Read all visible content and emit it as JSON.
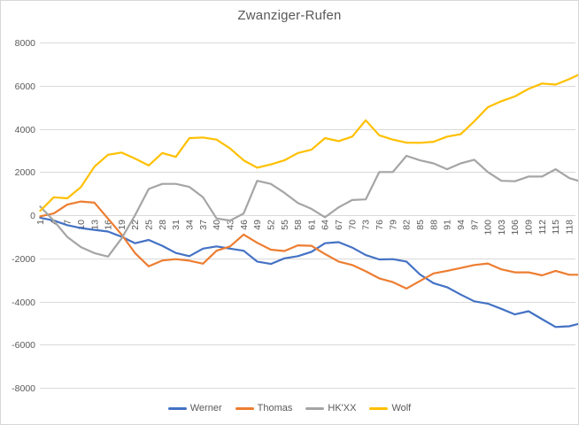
{
  "title": "Zwanziger-Rufen",
  "chart_data": {
    "type": "line",
    "title": "Zwanziger-Rufen",
    "xlabel": "",
    "ylabel": "",
    "ylim": [
      -8000,
      8000
    ],
    "grid": true,
    "legend_position": "bottom",
    "y_tick_labels": [
      "8000",
      "6000",
      "4000",
      "2000",
      "0",
      "-2000",
      "-4000",
      "-6000",
      "-8000"
    ],
    "y_ticks": [
      8000,
      6000,
      4000,
      2000,
      0,
      -2000,
      -4000,
      -6000,
      -8000
    ],
    "x_tick_labels": [
      "1",
      "4",
      "7",
      "10",
      "13",
      "16",
      "19",
      "22",
      "25",
      "28",
      "31",
      "34",
      "37",
      "40",
      "43",
      "46",
      "49",
      "52",
      "55",
      "58",
      "61",
      "64",
      "67",
      "70",
      "73",
      "76",
      "79",
      "82",
      "85",
      "88",
      "91",
      "94",
      "97",
      "100",
      "103",
      "106",
      "109",
      "112",
      "115",
      "118"
    ],
    "x": [
      1,
      4,
      7,
      10,
      13,
      16,
      19,
      22,
      25,
      28,
      31,
      34,
      37,
      40,
      43,
      46,
      49,
      52,
      55,
      58,
      61,
      64,
      67,
      70,
      73,
      76,
      79,
      82,
      85,
      88,
      91,
      94,
      97,
      100,
      103,
      106,
      109,
      112,
      115,
      118,
      120
    ],
    "series": [
      {
        "name": "Werner",
        "color": "#4472C4",
        "values": [
          -120,
          -250,
          -465,
          -600,
          -680,
          -760,
          -1000,
          -1300,
          -1150,
          -1420,
          -1750,
          -1900,
          -1550,
          -1450,
          -1550,
          -1650,
          -2150,
          -2260,
          -2000,
          -1900,
          -1700,
          -1300,
          -1250,
          -1500,
          -1850,
          -2050,
          -2040,
          -2150,
          -2750,
          -3150,
          -3340,
          -3680,
          -3990,
          -4100,
          -4340,
          -4600,
          -4450,
          -4820,
          -5180,
          -5150,
          -5040
        ]
      },
      {
        "name": "Thomas",
        "color": "#ED7D31",
        "values": [
          -55,
          80,
          490,
          630,
          580,
          -160,
          -900,
          -1760,
          -2370,
          -2100,
          -2040,
          -2110,
          -2250,
          -1650,
          -1450,
          -900,
          -1280,
          -1600,
          -1660,
          -1400,
          -1420,
          -1800,
          -2150,
          -2310,
          -2600,
          -2930,
          -3100,
          -3400,
          -3050,
          -2700,
          -2580,
          -2450,
          -2310,
          -2240,
          -2510,
          -2650,
          -2650,
          -2790,
          -2580,
          -2760,
          -2760
        ]
      },
      {
        "name": "HK'XX",
        "color": "#A5A5A5",
        "values": [
          400,
          -260,
          -1010,
          -1480,
          -1760,
          -1920,
          -1080,
          0,
          1215,
          1450,
          1450,
          1310,
          830,
          -150,
          -250,
          80,
          1590,
          1450,
          1040,
          560,
          290,
          -100,
          360,
          700,
          730,
          2000,
          2000,
          2750,
          2540,
          2400,
          2130,
          2400,
          2570,
          2000,
          1590,
          1570,
          1790,
          1790,
          2130,
          1720,
          1590
        ]
      },
      {
        "name": "Wolf",
        "color": "#FFC000",
        "values": [
          200,
          830,
          780,
          1300,
          2250,
          2800,
          2900,
          2620,
          2300,
          2880,
          2700,
          3570,
          3600,
          3500,
          3090,
          2540,
          2200,
          2350,
          2540,
          2880,
          3030,
          3570,
          3430,
          3640,
          4400,
          3700,
          3500,
          3360,
          3350,
          3400,
          3640,
          3750,
          4350,
          5000,
          5280,
          5500,
          5850,
          6100,
          6050,
          6300,
          6500
        ]
      }
    ]
  }
}
